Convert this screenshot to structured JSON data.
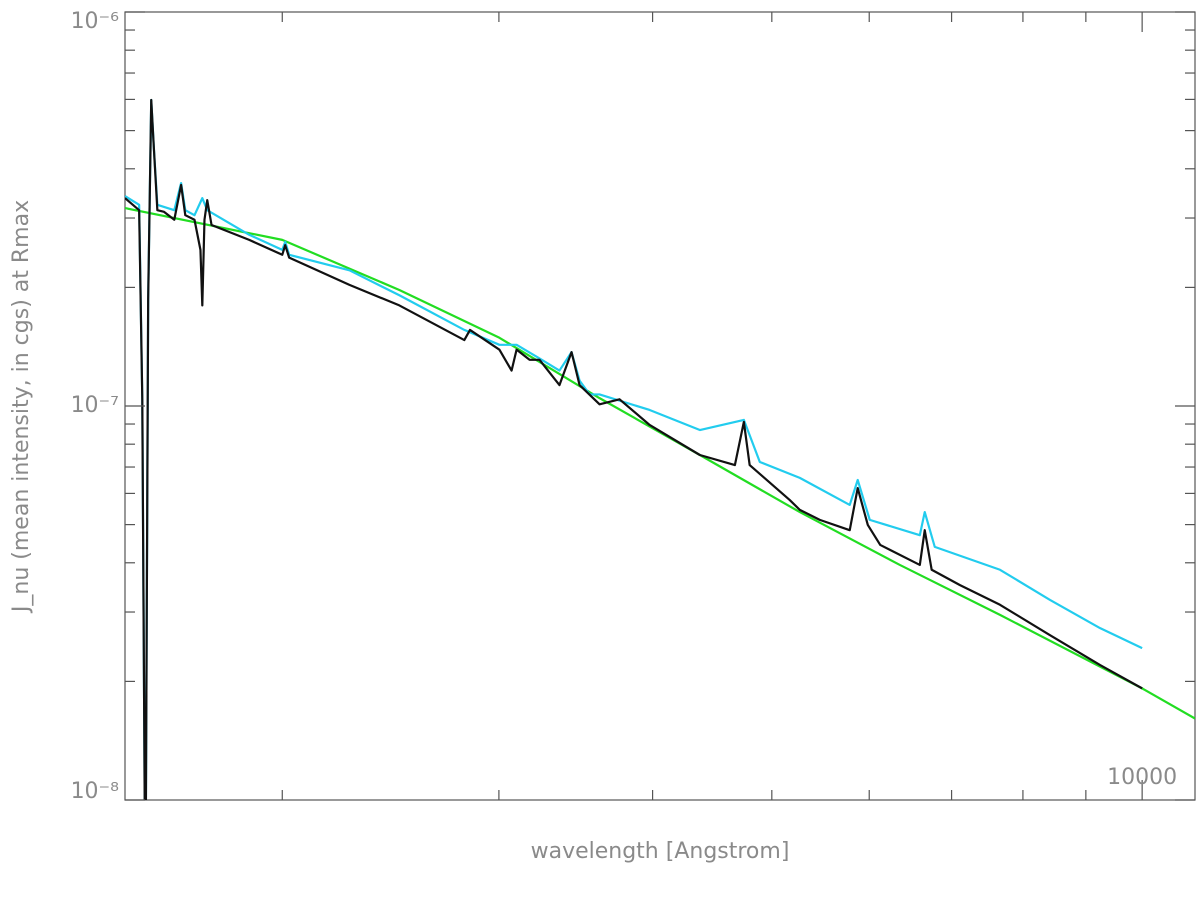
{
  "chart_data": {
    "type": "line",
    "x_label": "wavelength [Angstrom]",
    "y_label": "J_nu (mean intensity, in cgs) at Rmax",
    "log_x": true,
    "log_y": true,
    "xlim": [
      1490,
      11040
    ],
    "ylim": [
      1e-08,
      1e-06
    ],
    "xticks": [
      10000
    ],
    "xminorticks": [
      2000,
      3000,
      4000,
      5000,
      6000,
      7000,
      8000,
      9000
    ],
    "yticks": [
      {
        "value": 1e-06,
        "label": "10⁻⁶"
      },
      {
        "value": 1e-07,
        "label": "10⁻⁷"
      },
      {
        "value": 1e-08,
        "label": "10⁻⁸"
      }
    ],
    "yminorticks": [
      2e-08,
      3e-08,
      4e-08,
      5e-08,
      6e-08,
      7e-08,
      8e-08,
      9e-08,
      2e-07,
      3e-07,
      4e-07,
      5e-07,
      6e-07,
      7e-07,
      8e-07,
      9e-07
    ],
    "series": [
      {
        "color": "#22dd22",
        "x": [
          1490,
          2000,
          2490,
          3003,
          3622,
          4370,
          5269,
          6354,
          7664,
          10000,
          11040
        ],
        "values": [
          3.18e-07,
          2.64e-07,
          1.97e-07,
          1.49e-07,
          1.047e-07,
          7.51e-08,
          5.38e-08,
          3.95e-08,
          2.95e-08,
          1.92e-08,
          1.61e-08
        ]
      },
      {
        "color": "#22ccee",
        "x": [
          1490,
          1530,
          1539,
          1548,
          1556,
          1565,
          1573,
          1583,
          1634,
          1655,
          1668,
          1697,
          1722,
          1738,
          1880,
          2000,
          2011,
          2026,
          2268,
          2490,
          2812,
          3003,
          3101,
          3237,
          3360,
          3437,
          3489,
          3555,
          3622,
          3978,
          4370,
          4745,
          4889,
          5269,
          5785,
          5872,
          6006,
          6596,
          6657,
          6783,
          7664,
          8416,
          9244,
          10000
        ],
        "values": [
          3.41e-07,
          3.24e-07,
          1.04e-07,
          5e-09,
          1.86e-07,
          5.98e-07,
          4.47e-07,
          3.24e-07,
          3.14e-07,
          3.68e-07,
          3.14e-07,
          3.05e-07,
          3.37e-07,
          3.14e-07,
          2.72e-07,
          2.49e-07,
          2.61e-07,
          2.42e-07,
          2.21e-07,
          1.91e-07,
          1.56e-07,
          1.43e-07,
          1.43e-07,
          1.32e-07,
          1.23e-07,
          1.37e-07,
          1.16e-07,
          1.07e-07,
          1.07e-07,
          9.77e-08,
          8.69e-08,
          9.22e-08,
          7.21e-08,
          6.57e-08,
          5.61e-08,
          6.49e-08,
          5.14e-08,
          4.7e-08,
          5.38e-08,
          4.39e-08,
          3.84e-08,
          3.22e-08,
          2.73e-08,
          2.43e-08
        ]
      },
      {
        "color": "#111111",
        "x": [
          1490,
          1530,
          1539,
          1548,
          1556,
          1565,
          1573,
          1583,
          1603,
          1634,
          1655,
          1668,
          1697,
          1716,
          1722,
          1729,
          1738,
          1752,
          1880,
          2000,
          2011,
          2026,
          2268,
          2490,
          2812,
          2842,
          3003,
          3072,
          3101,
          3177,
          3237,
          3360,
          3437,
          3489,
          3622,
          3760,
          3978,
          4370,
          4666,
          4745,
          4797,
          5171,
          5269,
          5470,
          5785,
          5872,
          5984,
          6125,
          6596,
          6657,
          6744,
          7111,
          7664,
          8416,
          9244,
          10000
        ],
        "values": [
          3.37e-07,
          3.14e-07,
          1.04e-07,
          5e-09,
          1.86e-07,
          5.98e-07,
          4.47e-07,
          3.14e-07,
          3.11e-07,
          2.97e-07,
          3.64e-07,
          3.05e-07,
          2.97e-07,
          2.49e-07,
          1.8e-07,
          2.97e-07,
          3.33e-07,
          2.88e-07,
          2.64e-07,
          2.42e-07,
          2.56e-07,
          2.38e-07,
          2.03e-07,
          1.8e-07,
          1.47e-07,
          1.56e-07,
          1.39e-07,
          1.23e-07,
          1.39e-07,
          1.31e-07,
          1.31e-07,
          1.13e-07,
          1.37e-07,
          1.13e-07,
          1.01e-07,
          1.04e-07,
          8.95e-08,
          7.51e-08,
          7.08e-08,
          9.11e-08,
          7.08e-08,
          5.77e-08,
          5.45e-08,
          5.14e-08,
          4.84e-08,
          6.19e-08,
          4.99e-08,
          4.44e-08,
          3.95e-08,
          4.84e-08,
          3.84e-08,
          3.51e-08,
          3.13e-08,
          2.62e-08,
          2.2e-08,
          1.92e-08
        ]
      }
    ]
  }
}
